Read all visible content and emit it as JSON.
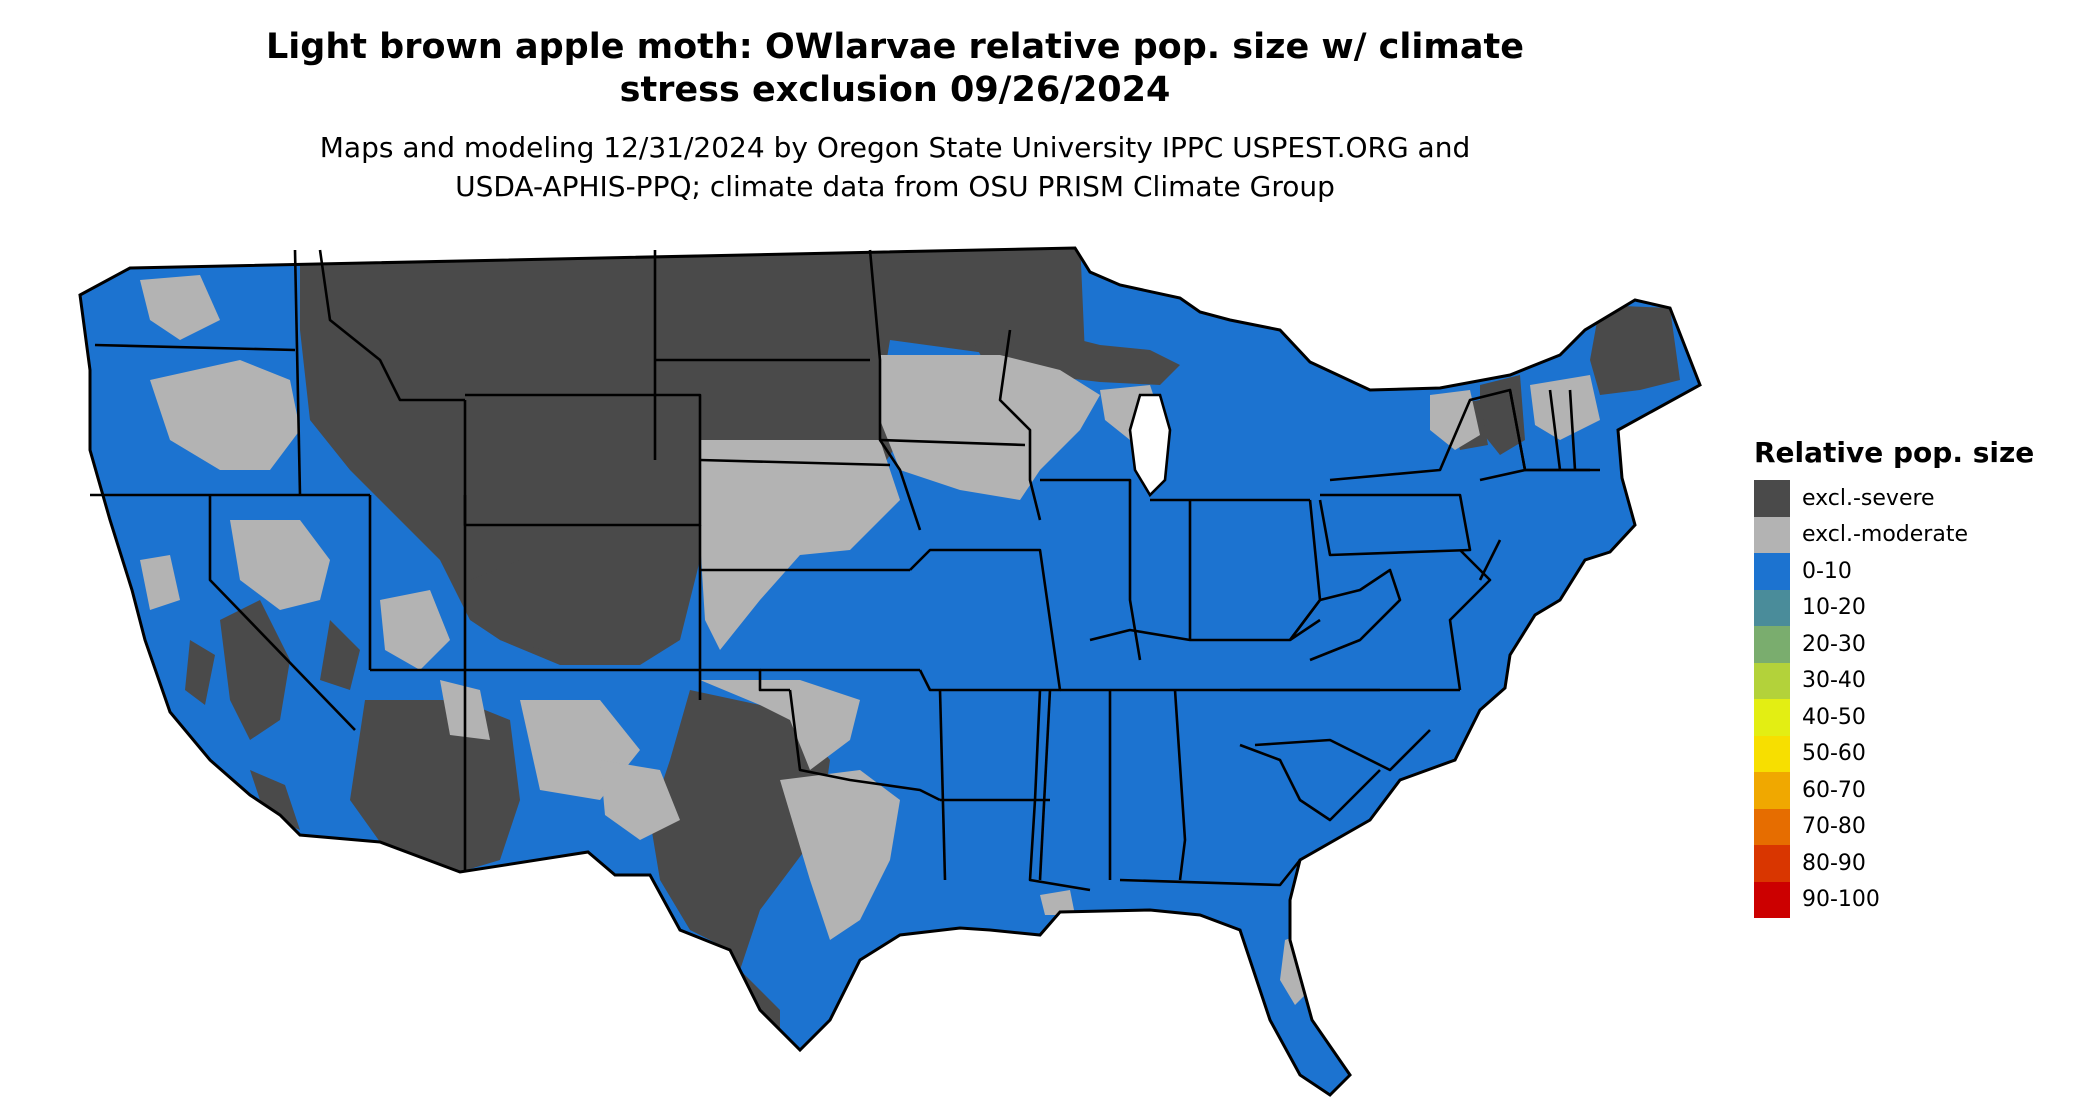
{
  "title": {
    "line1": "Light brown apple moth: OWlarvae relative pop. size w/ climate",
    "line2": "stress exclusion 09/26/2024"
  },
  "subtitle": {
    "line1": "Maps and modeling 12/31/2024 by Oregon State University IPPC USPEST.ORG and",
    "line2": "USDA-APHIS-PPQ; climate data from OSU PRISM Climate Group"
  },
  "map": {
    "colors": {
      "severe": "#4a4a4a",
      "moderate": "#b3b3b3",
      "low": "#1c73d0",
      "border": "#000000"
    }
  },
  "legend": {
    "title": "Relative pop. size",
    "items": [
      {
        "label": "excl.-severe",
        "color": "#4a4a4a"
      },
      {
        "label": "excl.-moderate",
        "color": "#b3b3b3"
      },
      {
        "label": "0-10",
        "color": "#1c73d0"
      },
      {
        "label": "10-20",
        "color": "#4a8c9a"
      },
      {
        "label": "20-30",
        "color": "#7aad6e"
      },
      {
        "label": "30-40",
        "color": "#b3d23a"
      },
      {
        "label": "40-50",
        "color": "#e3ee13"
      },
      {
        "label": "50-60",
        "color": "#f7df00"
      },
      {
        "label": "60-70",
        "color": "#f0a800"
      },
      {
        "label": "70-80",
        "color": "#e66d00"
      },
      {
        "label": "80-90",
        "color": "#d93600"
      },
      {
        "label": "90-100",
        "color": "#cc0000"
      }
    ]
  }
}
